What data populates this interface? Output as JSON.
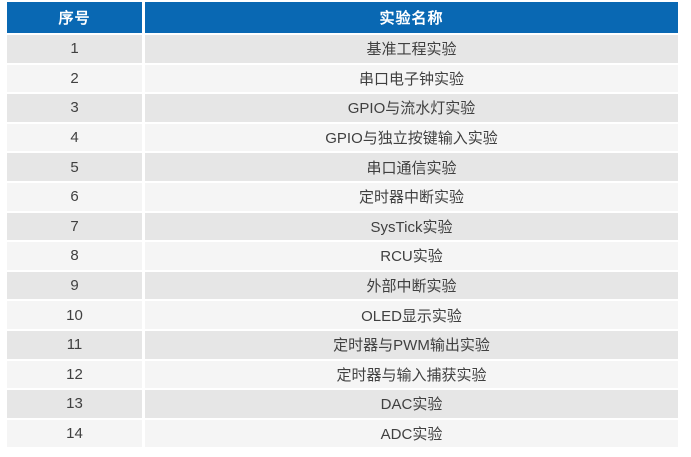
{
  "table": {
    "headers": [
      {
        "id": "index",
        "label": "序号"
      },
      {
        "id": "name",
        "label": "实验名称"
      }
    ],
    "rows": [
      {
        "no": "1",
        "name": "基准工程实验"
      },
      {
        "no": "2",
        "name": "串口电子钟实验"
      },
      {
        "no": "3",
        "name": "GPIO与流水灯实验"
      },
      {
        "no": "4",
        "name": "GPIO与独立按键输入实验"
      },
      {
        "no": "5",
        "name": "串口通信实验"
      },
      {
        "no": "6",
        "name": "定时器中断实验"
      },
      {
        "no": "7",
        "name": "SysTick实验"
      },
      {
        "no": "8",
        "name": "RCU实验"
      },
      {
        "no": "9",
        "name": "外部中断实验"
      },
      {
        "no": "10",
        "name": "OLED显示实验"
      },
      {
        "no": "11",
        "name": "定时器与PWM输出实验"
      },
      {
        "no": "12",
        "name": "定时器与输入捕获实验"
      },
      {
        "no": "13",
        "name": "DAC实验"
      },
      {
        "no": "14",
        "name": "ADC实验"
      }
    ],
    "colors": {
      "header_bg": "#0968b3",
      "header_text": "#ffffff",
      "row_odd_bg": "#e6e6e6",
      "row_even_bg": "#f5f5f5",
      "cell_text": "#404040",
      "separator": "#ffffff"
    }
  }
}
